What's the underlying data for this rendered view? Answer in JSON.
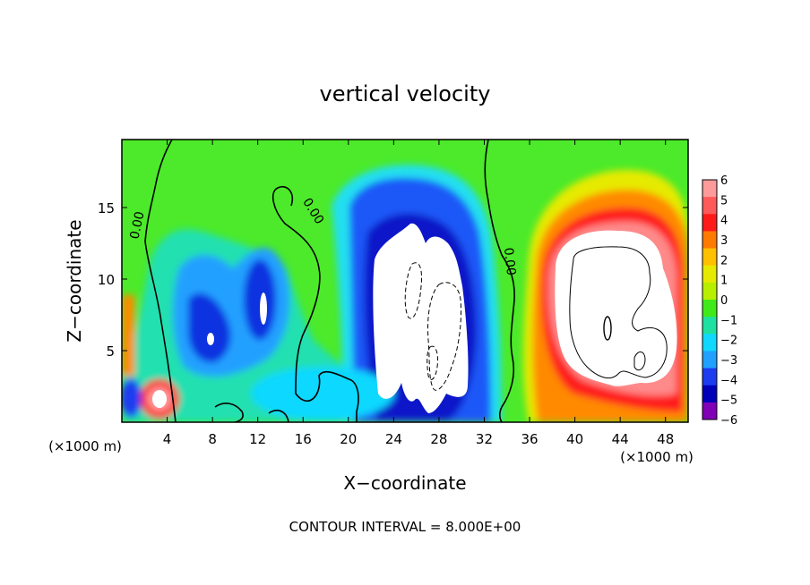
{
  "chart_data": {
    "type": "heatmap",
    "title": "vertical velocity",
    "xlabel": "X−coordinate",
    "ylabel": "Z−coordinate",
    "x_unit_left": "(×1000 m)",
    "x_unit_right": "(×1000 m)",
    "footer": "CONTOUR INTERVAL = 8.000E+00",
    "xlim": [
      0,
      50
    ],
    "ylim": [
      0,
      19.75
    ],
    "x_ticks": [
      4,
      8,
      12,
      16,
      20,
      24,
      28,
      32,
      36,
      40,
      44,
      48
    ],
    "x_tick_labels": [
      "4",
      "8",
      "12",
      "16",
      "20",
      "24",
      "28",
      "32",
      "36",
      "40",
      "44",
      "48"
    ],
    "y_ticks": [
      5,
      10,
      15
    ],
    "y_tick_labels": [
      "5",
      "10",
      "15"
    ],
    "colorbar": {
      "range": [
        -6,
        6
      ],
      "levels": [
        6,
        5,
        4,
        3,
        2,
        1,
        0,
        -1,
        -2,
        -3,
        -4,
        -5,
        -6
      ],
      "labels": [
        "6",
        "5",
        "4",
        "3",
        "2",
        "1",
        "0",
        "−1",
        "−2",
        "−3",
        "−4",
        "−5",
        "−6"
      ],
      "colors": [
        "#ff9a9a",
        "#ff5a5a",
        "#ff1a1a",
        "#ff7a00",
        "#ffc000",
        "#e6ea00",
        "#b8ef00",
        "#40ea1a",
        "#1ee0a0",
        "#10d8ff",
        "#20a0ff",
        "#1c3cf0",
        "#0000b8",
        "#8000b8"
      ]
    },
    "contour_labels": [
      {
        "text": "0.00",
        "x": 1.7,
        "y": 13.7,
        "angle": -78
      },
      {
        "text": "0.00",
        "x": 16.6,
        "y": 14.6,
        "angle": 58
      },
      {
        "text": "0.00",
        "x": 33.9,
        "y": 11.2,
        "angle": 84
      }
    ]
  }
}
